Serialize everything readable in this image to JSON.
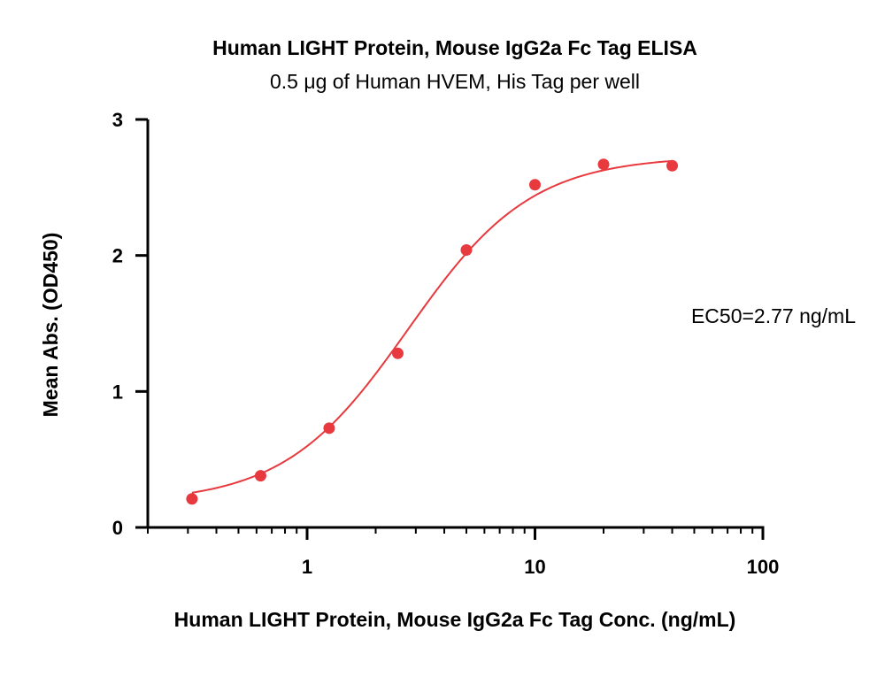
{
  "chart_data": {
    "type": "scatter",
    "title": "Human LIGHT Protein, Mouse IgG2a Fc Tag ELISA",
    "subtitle": "0.5 μg of Human HVEM, His Tag per well",
    "xlabel": "Human LIGHT Protein, Mouse IgG2a Fc Tag Conc. (ng/mL)",
    "ylabel": "Mean Abs. (OD450)",
    "x_scale": "log",
    "xlim": [
      0.2,
      100
    ],
    "ylim": [
      0,
      3
    ],
    "x_ticks": [
      1,
      10,
      100
    ],
    "x_tick_labels": [
      "1",
      "10",
      "100"
    ],
    "y_ticks": [
      0,
      1,
      2,
      3
    ],
    "y_tick_labels": [
      "0",
      "1",
      "2",
      "3"
    ],
    "grid": false,
    "series": [
      {
        "x": [
          0.3125,
          0.625,
          1.25,
          2.5,
          5,
          10,
          20,
          40
        ],
        "y": [
          0.21,
          0.38,
          0.73,
          1.28,
          2.04,
          2.52,
          2.67,
          2.66
        ],
        "fit": "4PL",
        "color": "#e8393e"
      }
    ],
    "fit_params": {
      "bottom": 0.18,
      "top": 2.73,
      "ec50": 2.77,
      "hill": 1.6
    },
    "annotations": [
      "EC50=2.77 ng/mL"
    ]
  }
}
